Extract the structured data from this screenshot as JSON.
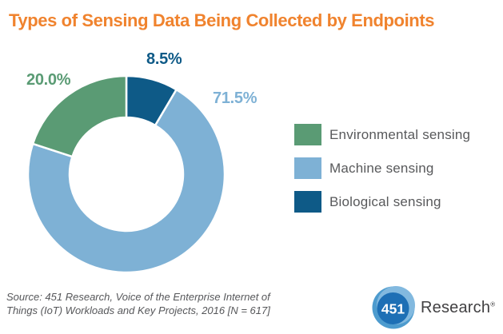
{
  "chart_data": {
    "type": "pie",
    "variant": "donut",
    "title": "Types of Sensing Data Being Collected by Endpoints",
    "start_angle_deg": 0,
    "direction": "clockwise",
    "legend_position": "right",
    "data_labels": "percent outside slices",
    "slices": [
      {
        "label": "Biological sensing",
        "value": 8.5,
        "display": "8.5%",
        "color": "#0E5A87"
      },
      {
        "label": "Machine sensing",
        "value": 71.5,
        "display": "71.5%",
        "color": "#7EB1D5"
      },
      {
        "label": "Environmental sensing",
        "value": 20.0,
        "display": "20.0%",
        "color": "#5A9B74"
      }
    ],
    "legend": [
      {
        "label": "Environmental sensing",
        "color": "#5A9B74"
      },
      {
        "label": "Machine sensing",
        "color": "#7EB1D5"
      },
      {
        "label": "Biological sensing",
        "color": "#0E5A87"
      }
    ]
  },
  "colors": {
    "title": "#F0832E",
    "legend_text": "#58595B",
    "source_text": "#56575A",
    "brand_text": "#414042",
    "logo_blue_base": "#4D9BCE",
    "logo_blue_light": "#82B9DF",
    "logo_blue_dark": "#1D6FB5"
  },
  "source": {
    "line1": "Source: 451 Research, Voice of the Enterprise Internet of",
    "line2": "Things (IoT) Workloads and Key Projects, 2016 [N = 617]"
  },
  "logo": {
    "number": "451",
    "brand": "Research",
    "reg": "®"
  }
}
